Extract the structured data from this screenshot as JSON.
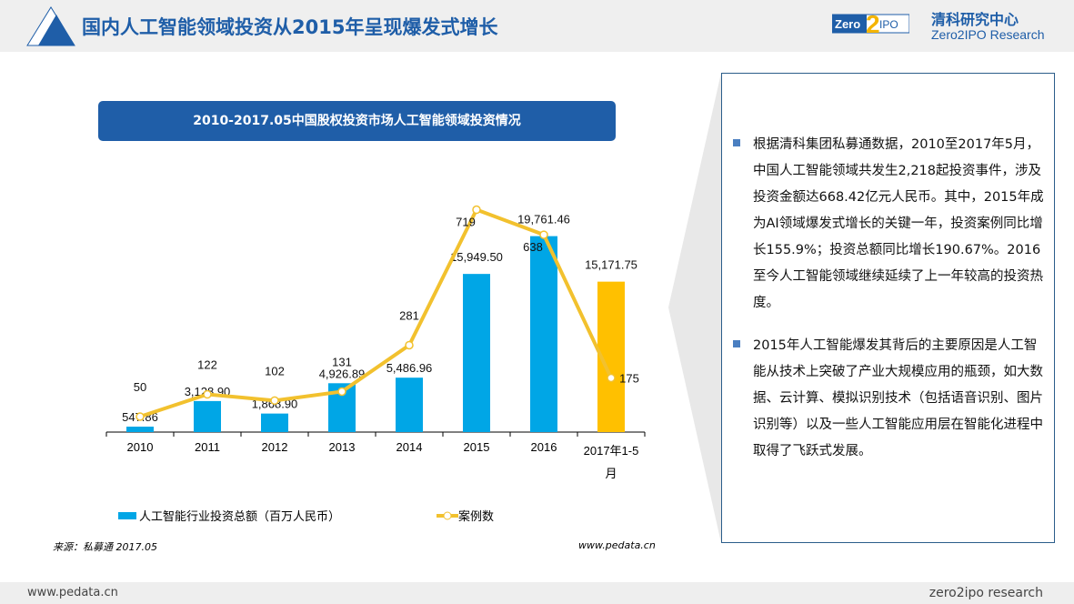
{
  "header": {
    "title": "国内人工智能领域投资从2015年呈现爆发式增长",
    "logo_text": "Zero2IPO",
    "brand_cn": "清科研究中心",
    "brand_en": "Zero2IPO Research"
  },
  "chart_data": {
    "type": "bar+line",
    "title": "2010-2017.05中国股权投资市场人工智能领域投资情况",
    "categories": [
      "2010",
      "2011",
      "2012",
      "2013",
      "2014",
      "2015",
      "2016",
      "2017年1-5月"
    ],
    "series": [
      {
        "name": "人工智能行业投资总额（百万人民币）",
        "type": "bar",
        "values": [
          547.86,
          3128.9,
          1868.9,
          4926.89,
          5486.96,
          15949.5,
          19761.46,
          15171.75
        ],
        "labels": [
          "547.86",
          "3,128.90",
          "1,868.90",
          "4,926.89",
          "5,486.96",
          "15,949.50",
          "19,761.46",
          "15,171.75"
        ],
        "color": "#00a6e6",
        "highlight_color": "#ffc000"
      },
      {
        "name": "案例数",
        "type": "line",
        "values": [
          50,
          122,
          102,
          131,
          281,
          719,
          638,
          175
        ],
        "color": "#f2c12e"
      }
    ],
    "grid": false,
    "legend": "bottom"
  },
  "source": "来源：私募通 2017.05",
  "site": "www.pedata.cn",
  "panel": {
    "bullets": [
      "根据清科集团私募通数据，2010至2017年5月，中国人工智能领域共发生2,218起投资事件，涉及投资金额达668.42亿元人民币。其中，2015年成为AI领域爆发式增长的关键一年，投资案例同比增长155.9%；投资总额同比增长190.67%。2016至今人工智能领域继续延续了上一年较高的投资热度。",
      "2015年人工智能爆发其背后的主要原因是人工智能从技术上突破了产业大规模应用的瓶颈，如大数据、云计算、模拟识别技术（包括语音识别、图片识别等）以及一些人工智能应用层在智能化进程中取得了飞跃式发展。"
    ]
  },
  "footer": {
    "left": "www.pedata.cn",
    "right": "zero2ipo research"
  }
}
